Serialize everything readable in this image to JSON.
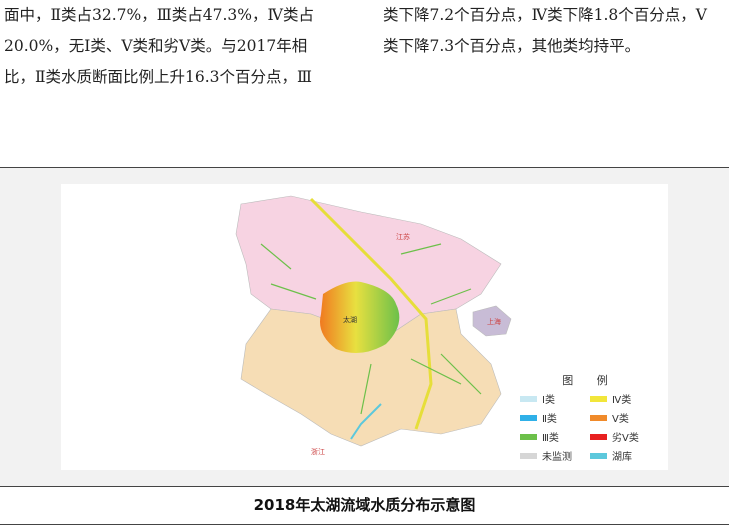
{
  "text": {
    "col1": [
      "面中，Ⅱ类占32.7%，Ⅲ类占47.3%，Ⅳ类占",
      "20.0%，无Ⅰ类、Ⅴ类和劣Ⅴ类。与2017年相",
      "比，Ⅱ类水质断面比例上升16.3个百分点，Ⅲ"
    ],
    "col2": [
      "类下降7.2个百分点，Ⅳ类下降1.8个百分点，Ⅴ",
      "类下降7.3个百分点，其他类均持平。"
    ]
  },
  "map": {
    "labels": {
      "jiangsu": "江苏",
      "taihu": "太湖",
      "shanghai": "上海",
      "zhejiang": "浙江"
    },
    "legend": {
      "title": "图 例",
      "items": [
        {
          "label": "Ⅰ类",
          "color": "#c8e8f2"
        },
        {
          "label": "Ⅳ类",
          "color": "#f2e63a"
        },
        {
          "label": "Ⅱ类",
          "color": "#2fb0e8"
        },
        {
          "label": "Ⅴ类",
          "color": "#f08a2a"
        },
        {
          "label": "Ⅲ类",
          "color": "#6cc04a"
        },
        {
          "label": "劣Ⅴ类",
          "color": "#e82020"
        },
        {
          "label": "未监测",
          "color": "#d6d6d6"
        },
        {
          "label": "湖库",
          "color": "#5cc8dc"
        }
      ]
    }
  },
  "caption": "2018年太湖流域水质分布示意图"
}
